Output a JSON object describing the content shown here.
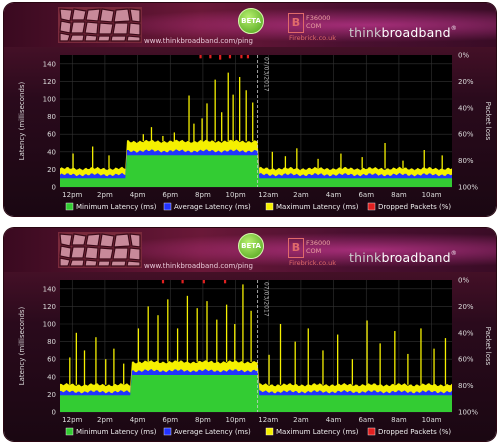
{
  "banner": {
    "url": "www.thinkbroadband.com/ping",
    "beta": "BETA",
    "fb_logo": "B",
    "fb_number": "F36000",
    "fb_com": "COM",
    "fb_site": "Firebrick.co.uk",
    "brand_think": "think",
    "brand_broad": "broadband",
    "brand_reg": "®",
    "colors": {
      "brand_think": "#cccccc",
      "brand_broad": "#ffffff",
      "accent": "#e06a6a"
    }
  },
  "charts": [
    {
      "type": "area",
      "ylabel_left": "Latency (milliseconds)",
      "ylabel_right": "Packet loss",
      "y_ticks": [
        "0",
        "20",
        "40",
        "60",
        "80",
        "100",
        "120",
        "140"
      ],
      "ylim": [
        0,
        150
      ],
      "right_ticks": [
        "0%",
        "20%",
        "40%",
        "60%",
        "80%",
        "100%"
      ],
      "x_ticks": [
        "12pm",
        "2pm",
        "4pm",
        "6pm",
        "8pm",
        "10pm",
        "12am",
        "2am",
        "4am",
        "6am",
        "8am",
        "10am"
      ],
      "xlim_hours": [
        0,
        24
      ],
      "date_marker": "07/03/2017",
      "date_marker_hour": 12.1,
      "legend": [
        "Minimum Latency (ms)",
        "Average Latency (ms)",
        "Maximum Latency (ms)",
        "Dropped Packets (%)"
      ],
      "colors": {
        "min": "#33cc33",
        "avg": "#2233ff",
        "max": "#f5f000",
        "drop": "#e02020",
        "bg": "#000000",
        "grid": "#333333"
      },
      "segments": [
        {
          "from": 0,
          "to": 4.0,
          "min": 10,
          "avg": 14,
          "max": 21
        },
        {
          "from": 4.0,
          "to": 12.1,
          "min": 36,
          "avg": 41,
          "max": 52
        },
        {
          "from": 12.1,
          "to": 24,
          "min": 10,
          "avg": 14,
          "max": 21
        }
      ],
      "spikes": [
        {
          "h": 0.8,
          "v": 38
        },
        {
          "h": 2.0,
          "v": 46
        },
        {
          "h": 3.0,
          "v": 36
        },
        {
          "h": 5.1,
          "v": 60
        },
        {
          "h": 5.6,
          "v": 68
        },
        {
          "h": 6.3,
          "v": 58
        },
        {
          "h": 7.0,
          "v": 62
        },
        {
          "h": 7.9,
          "v": 104
        },
        {
          "h": 8.2,
          "v": 72
        },
        {
          "h": 8.7,
          "v": 78
        },
        {
          "h": 9.0,
          "v": 95
        },
        {
          "h": 9.5,
          "v": 122
        },
        {
          "h": 9.9,
          "v": 85
        },
        {
          "h": 10.3,
          "v": 130
        },
        {
          "h": 10.6,
          "v": 105
        },
        {
          "h": 11.0,
          "v": 125
        },
        {
          "h": 11.4,
          "v": 110
        },
        {
          "h": 11.8,
          "v": 96
        },
        {
          "h": 13.0,
          "v": 40
        },
        {
          "h": 13.8,
          "v": 35
        },
        {
          "h": 14.5,
          "v": 44
        },
        {
          "h": 15.8,
          "v": 32
        },
        {
          "h": 17.2,
          "v": 38
        },
        {
          "h": 18.5,
          "v": 34
        },
        {
          "h": 19.9,
          "v": 50
        },
        {
          "h": 21.0,
          "v": 30
        },
        {
          "h": 22.3,
          "v": 42
        },
        {
          "h": 23.4,
          "v": 36
        }
      ],
      "drops": [
        {
          "h": 8.6,
          "pct": 1
        },
        {
          "h": 9.2,
          "pct": 1
        },
        {
          "h": 9.8,
          "pct": 2
        },
        {
          "h": 10.4,
          "pct": 1
        },
        {
          "h": 11.1,
          "pct": 1
        },
        {
          "h": 11.5,
          "pct": 1
        }
      ]
    },
    {
      "type": "area",
      "ylabel_left": "Latency (milliseconds)",
      "ylabel_right": "Packet loss",
      "y_ticks": [
        "0",
        "20",
        "40",
        "60",
        "80",
        "100",
        "120",
        "140"
      ],
      "ylim": [
        0,
        150
      ],
      "right_ticks": [
        "0%",
        "20%",
        "40%",
        "60%",
        "80%",
        "100%"
      ],
      "x_ticks": [
        "12pm",
        "2pm",
        "4pm",
        "6pm",
        "8pm",
        "10pm",
        "12am",
        "2am",
        "4am",
        "6am",
        "8am",
        "10am"
      ],
      "xlim_hours": [
        0,
        24
      ],
      "date_marker": "07/03/2017",
      "date_marker_hour": 12.1,
      "legend": [
        "Minimum Latency (ms)",
        "Average Latency (ms)",
        "Maximum Latency (ms)",
        "Dropped Packets (%)"
      ],
      "colors": {
        "min": "#33cc33",
        "avg": "#2233ff",
        "max": "#f5f000",
        "drop": "#e02020",
        "bg": "#000000",
        "grid": "#333333"
      },
      "segments": [
        {
          "from": 0,
          "to": 4.3,
          "min": 19,
          "avg": 23,
          "max": 31
        },
        {
          "from": 4.3,
          "to": 12.1,
          "min": 42,
          "avg": 47,
          "max": 57
        },
        {
          "from": 12.1,
          "to": 24,
          "min": 19,
          "avg": 23,
          "max": 31
        }
      ],
      "spikes": [
        {
          "h": 0.6,
          "v": 62
        },
        {
          "h": 1.0,
          "v": 90
        },
        {
          "h": 1.5,
          "v": 70
        },
        {
          "h": 2.2,
          "v": 85
        },
        {
          "h": 2.8,
          "v": 60
        },
        {
          "h": 3.3,
          "v": 72
        },
        {
          "h": 3.9,
          "v": 55
        },
        {
          "h": 4.8,
          "v": 95
        },
        {
          "h": 5.4,
          "v": 120
        },
        {
          "h": 6.0,
          "v": 110
        },
        {
          "h": 6.6,
          "v": 128
        },
        {
          "h": 7.2,
          "v": 95
        },
        {
          "h": 7.8,
          "v": 132
        },
        {
          "h": 8.4,
          "v": 118
        },
        {
          "h": 9.0,
          "v": 126
        },
        {
          "h": 9.6,
          "v": 105
        },
        {
          "h": 10.2,
          "v": 122
        },
        {
          "h": 10.7,
          "v": 100
        },
        {
          "h": 11.2,
          "v": 145
        },
        {
          "h": 11.7,
          "v": 115
        },
        {
          "h": 12.8,
          "v": 65
        },
        {
          "h": 13.5,
          "v": 100
        },
        {
          "h": 14.4,
          "v": 80
        },
        {
          "h": 15.2,
          "v": 95
        },
        {
          "h": 16.1,
          "v": 70
        },
        {
          "h": 17.0,
          "v": 88
        },
        {
          "h": 17.9,
          "v": 60
        },
        {
          "h": 18.8,
          "v": 104
        },
        {
          "h": 19.6,
          "v": 78
        },
        {
          "h": 20.5,
          "v": 92
        },
        {
          "h": 21.3,
          "v": 66
        },
        {
          "h": 22.1,
          "v": 95
        },
        {
          "h": 22.9,
          "v": 72
        },
        {
          "h": 23.6,
          "v": 84
        }
      ],
      "drops": [
        {
          "h": 6.3,
          "pct": 1
        },
        {
          "h": 7.5,
          "pct": 1
        },
        {
          "h": 8.8,
          "pct": 1
        },
        {
          "h": 10.1,
          "pct": 1
        }
      ]
    }
  ]
}
